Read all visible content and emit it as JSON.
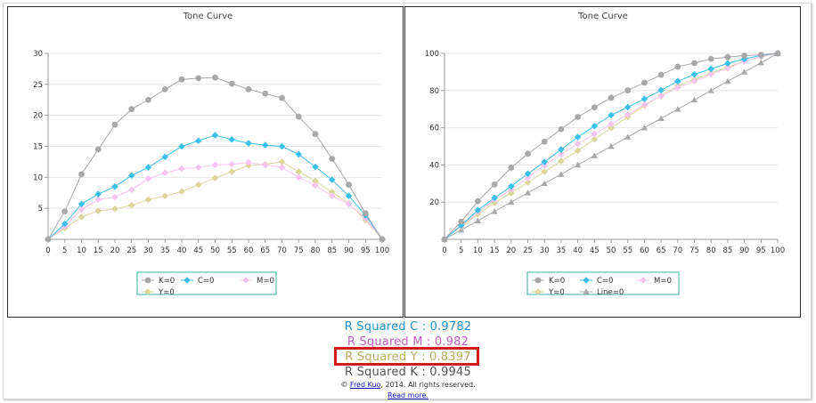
{
  "chart_data": [
    {
      "type": "line",
      "title": "Tone Curve",
      "xlabel": "",
      "ylabel": "",
      "xlim": [
        0,
        100
      ],
      "ylim": [
        0,
        30
      ],
      "x_ticks": [
        "0",
        "5",
        "10",
        "15",
        "20",
        "25",
        "30",
        "35",
        "40",
        "45",
        "50",
        "55",
        "60",
        "65",
        "70",
        "75",
        "80",
        "85",
        "90",
        "95",
        "100"
      ],
      "y_ticks": [
        "5",
        "10",
        "15",
        "20",
        "25",
        "30"
      ],
      "grid": true,
      "legend_position": "bottom",
      "series": [
        {
          "name": "K=0",
          "color": "#a8a8a8",
          "marker": "circle",
          "x": [
            0,
            5,
            10,
            15,
            20,
            25,
            30,
            35,
            40,
            45,
            50,
            55,
            60,
            65,
            70,
            75,
            80,
            85,
            90,
            95,
            100
          ],
          "values": [
            0,
            4.5,
            10.5,
            14.5,
            18.5,
            21,
            22.5,
            24.2,
            25.8,
            26,
            26.1,
            25.1,
            24.2,
            23.5,
            22.8,
            19.8,
            17,
            13,
            8.8,
            4.2,
            0
          ]
        },
        {
          "name": "C=0",
          "color": "#3cc0ea",
          "marker": "diamond",
          "x": [
            0,
            5,
            10,
            15,
            20,
            25,
            30,
            35,
            40,
            45,
            50,
            55,
            60,
            65,
            70,
            75,
            80,
            85,
            90,
            95,
            100
          ],
          "values": [
            0,
            2.5,
            5.7,
            7.3,
            8.5,
            10.3,
            11.6,
            13.3,
            15,
            15.9,
            16.8,
            16.1,
            15.5,
            15.2,
            15,
            13.7,
            11.7,
            9.6,
            7,
            3.9,
            0
          ]
        },
        {
          "name": "M=0",
          "color": "#f7c4ef",
          "marker": "diamond",
          "x": [
            0,
            5,
            10,
            15,
            20,
            25,
            30,
            35,
            40,
            45,
            50,
            55,
            60,
            65,
            70,
            75,
            80,
            85,
            90,
            95,
            100
          ],
          "values": [
            0,
            2.1,
            4.8,
            6.4,
            6.8,
            8,
            9.8,
            10.7,
            11.4,
            11.6,
            12,
            12.1,
            12.4,
            12,
            11.6,
            10,
            8.7,
            7,
            5.7,
            3.4,
            0
          ]
        },
        {
          "name": "Y=0",
          "color": "#dcd69a",
          "marker": "diamond",
          "x": [
            0,
            5,
            10,
            15,
            20,
            25,
            30,
            35,
            40,
            45,
            50,
            55,
            60,
            65,
            70,
            75,
            80,
            85,
            90,
            95,
            100
          ],
          "values": [
            0,
            1.8,
            3.6,
            4.6,
            4.9,
            5.5,
            6.4,
            7,
            7.7,
            8.8,
            9.9,
            10.9,
            11.9,
            12.1,
            12.5,
            10.9,
            9.4,
            7.6,
            5.8,
            3.1,
            0
          ]
        }
      ],
      "legend_rows": [
        [
          "K=0",
          "C=0",
          "M=0"
        ],
        [
          "Y=0"
        ]
      ]
    },
    {
      "type": "line",
      "title": "Tone Curve",
      "xlabel": "",
      "ylabel": "",
      "xlim": [
        0,
        100
      ],
      "ylim": [
        0,
        100
      ],
      "x_ticks": [
        "0",
        "5",
        "10",
        "15",
        "20",
        "25",
        "30",
        "35",
        "40",
        "45",
        "50",
        "55",
        "60",
        "65",
        "70",
        "75",
        "80",
        "85",
        "90",
        "95",
        "100"
      ],
      "y_ticks": [
        "20",
        "40",
        "60",
        "80",
        "100"
      ],
      "grid": true,
      "legend_position": "bottom",
      "series": [
        {
          "name": "K=0",
          "color": "#a8a8a8",
          "marker": "circle",
          "x": [
            0,
            5,
            10,
            15,
            20,
            25,
            30,
            35,
            40,
            45,
            50,
            55,
            60,
            65,
            70,
            75,
            80,
            85,
            90,
            95,
            100
          ],
          "values": [
            0,
            9.5,
            20.5,
            29.5,
            38.5,
            46,
            52.5,
            59.2,
            65.8,
            71,
            76.1,
            80.1,
            84.2,
            88.5,
            92.8,
            94.8,
            97,
            98,
            98.8,
            99.2,
            100
          ]
        },
        {
          "name": "C=0",
          "color": "#3cc0ea",
          "marker": "diamond",
          "x": [
            0,
            5,
            10,
            15,
            20,
            25,
            30,
            35,
            40,
            45,
            50,
            55,
            60,
            65,
            70,
            75,
            80,
            85,
            90,
            95,
            100
          ],
          "values": [
            0,
            7.5,
            15.7,
            22.3,
            28.5,
            35.3,
            41.6,
            48.3,
            55,
            60.9,
            66.8,
            71.1,
            75.5,
            80.2,
            85,
            88.7,
            91.7,
            94.6,
            97,
            98.9,
            100
          ]
        },
        {
          "name": "M=0",
          "color": "#f7c4ef",
          "marker": "diamond",
          "x": [
            0,
            5,
            10,
            15,
            20,
            25,
            30,
            35,
            40,
            45,
            50,
            55,
            60,
            65,
            70,
            75,
            80,
            85,
            90,
            95,
            100
          ],
          "values": [
            0,
            7.1,
            14.8,
            21.4,
            26.8,
            33,
            39.8,
            45.7,
            51.4,
            56.6,
            62,
            67.1,
            72.4,
            77,
            81.6,
            85,
            88.7,
            92,
            95.7,
            98.4,
            100
          ]
        },
        {
          "name": "Y=0",
          "color": "#dcd69a",
          "marker": "diamond",
          "x": [
            0,
            5,
            10,
            15,
            20,
            25,
            30,
            35,
            40,
            45,
            50,
            55,
            60,
            65,
            70,
            75,
            80,
            85,
            90,
            95,
            100
          ],
          "values": [
            0,
            6.8,
            13.6,
            19.6,
            24.9,
            30.5,
            36.4,
            42,
            47.7,
            53.8,
            59.9,
            65.9,
            71.9,
            77.1,
            82.5,
            85.9,
            89.4,
            92.6,
            95.8,
            98.1,
            100
          ]
        },
        {
          "name": "Line=0",
          "color": "#a8a8a8",
          "marker": "triangle",
          "x": [
            0,
            5,
            10,
            15,
            20,
            25,
            30,
            35,
            40,
            45,
            50,
            55,
            60,
            65,
            70,
            75,
            80,
            85,
            90,
            95,
            100
          ],
          "values": [
            0,
            5,
            10,
            15,
            20,
            25,
            30,
            35,
            40,
            45,
            50,
            55,
            60,
            65,
            70,
            75,
            80,
            85,
            90,
            95,
            100
          ]
        }
      ],
      "legend_rows": [
        [
          "K=0",
          "C=0",
          "M=0"
        ],
        [
          "Y=0",
          "Line=0"
        ]
      ]
    }
  ],
  "stats": {
    "r_squared_c": "R Squared C : 0.9782",
    "r_squared_m": "R Squared M : 0.982",
    "r_squared_y": "R Squared Y : 0.8397",
    "r_squared_k": "R Squared K : 0.9945"
  },
  "footer": {
    "copyright_symbol": "©",
    "author_link": "Fred Kuo",
    "copyright_text": ", 2014. All rights reserved.",
    "read_more": "Read more."
  },
  "colors": {
    "highlight_border": "#d21c1c",
    "stat_c": "#1f8fce",
    "stat_m": "#c060c0",
    "stat_y": "#b8b060",
    "stat_k": "#555555",
    "legend_border": "#35b0a0"
  }
}
